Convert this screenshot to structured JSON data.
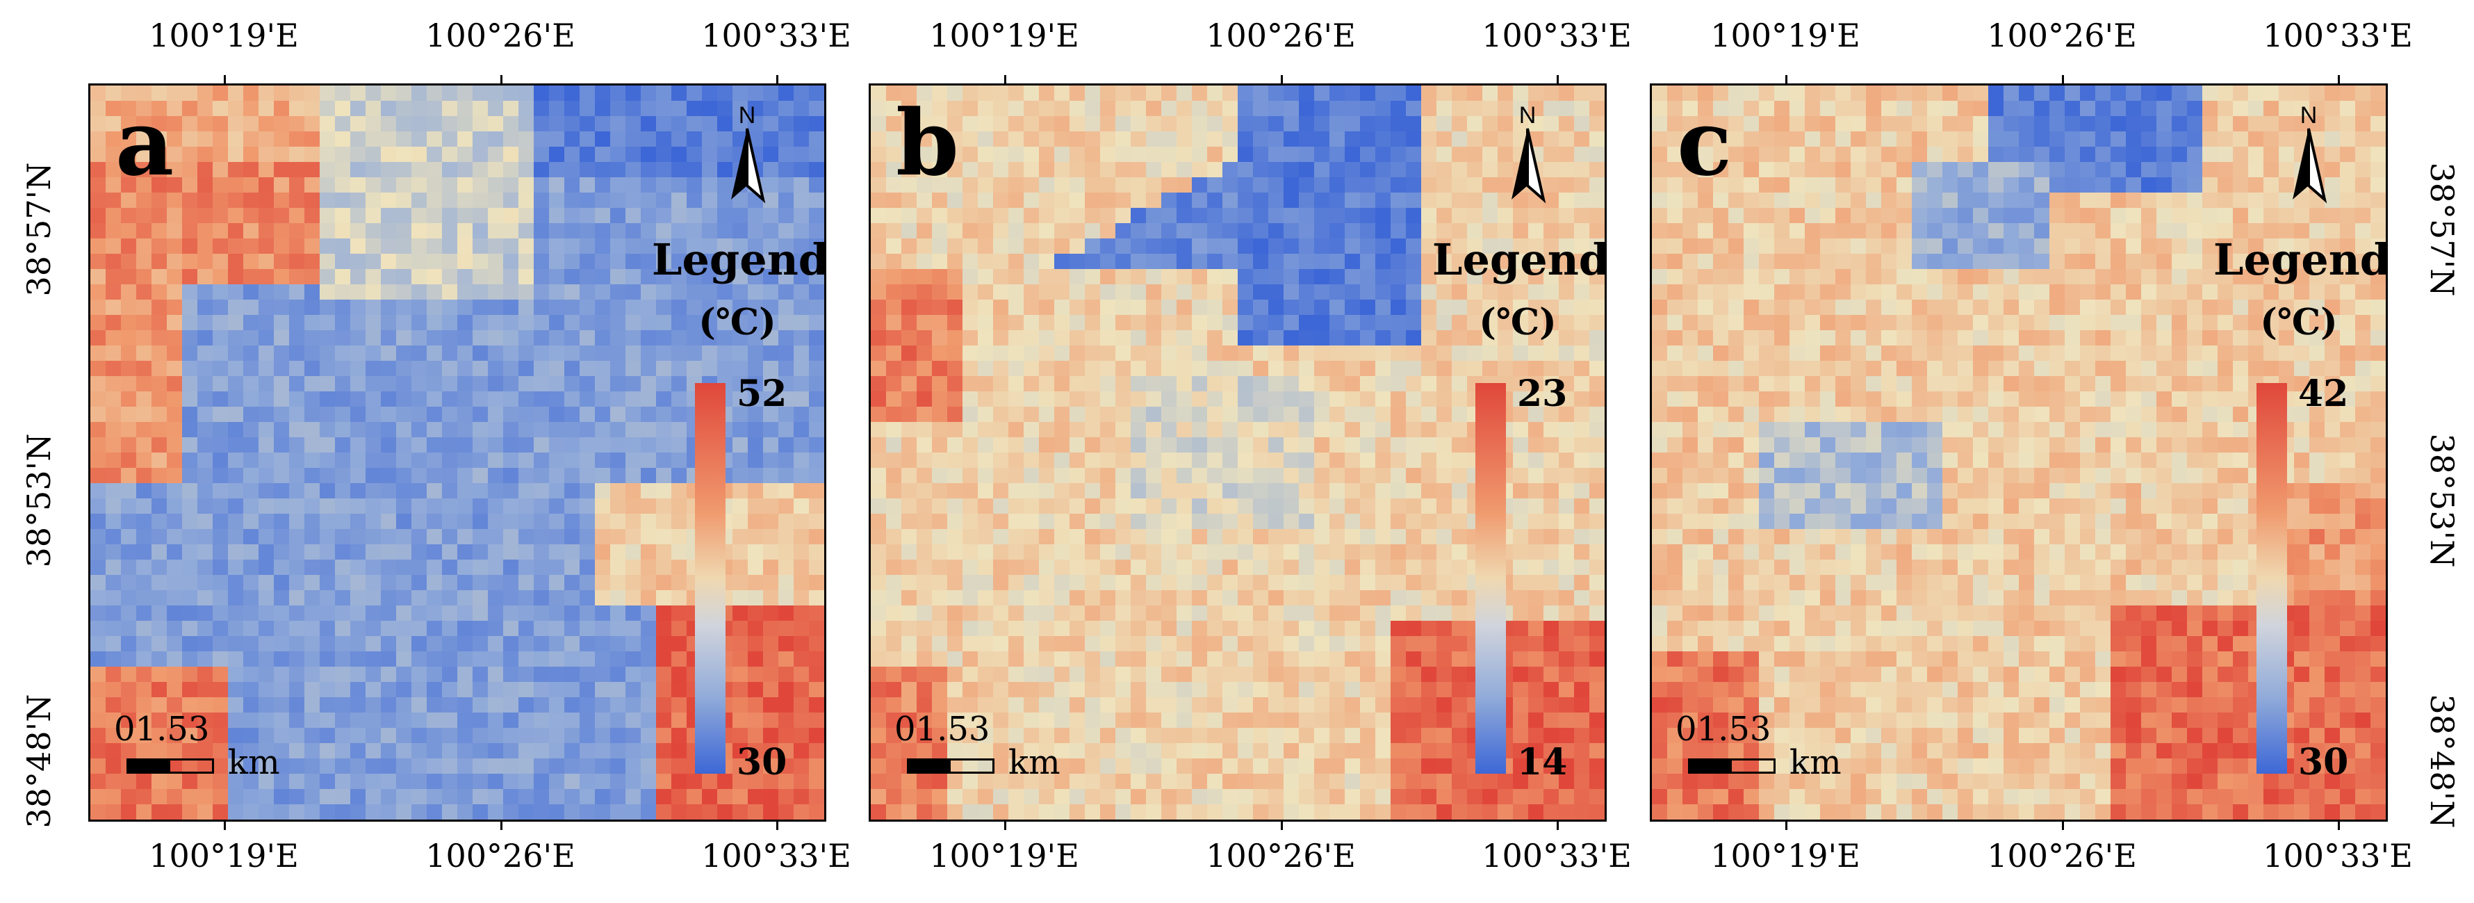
{
  "figure": {
    "panels": [
      {
        "id": "a",
        "letter": "a",
        "legend_title": "Legend",
        "legend_unit": "(℃)",
        "legend_max": "52",
        "legend_min": "30",
        "scale_numbers": "01.53",
        "scale_unit": "km",
        "north_label": "N",
        "top_lon_labels": [
          "100°19'E",
          "100°26'E",
          "100°33'E"
        ],
        "bottom_lon_labels": [
          "100°19'E",
          "100°26'E",
          "100°33'E"
        ],
        "left_lat_labels": [
          "38°57'N",
          "38°53'N",
          "38°48'N"
        ],
        "right_lat_labels": []
      },
      {
        "id": "b",
        "letter": "b",
        "legend_title": "Legend",
        "legend_unit": "(℃)",
        "legend_max": "23",
        "legend_min": "14",
        "scale_numbers": "01.53",
        "scale_unit": "km",
        "north_label": "N",
        "top_lon_labels": [
          "100°19'E",
          "100°26'E",
          "100°33'E"
        ],
        "bottom_lon_labels": [
          "100°19'E",
          "100°26'E",
          "100°33'E"
        ],
        "left_lat_labels": [],
        "right_lat_labels": []
      },
      {
        "id": "c",
        "letter": "c",
        "legend_title": "Legend",
        "legend_unit": "(℃)",
        "legend_max": "42",
        "legend_min": "30",
        "scale_numbers": "01.53",
        "scale_unit": "km",
        "north_label": "N",
        "top_lon_labels": [
          "100°19'E",
          "100°26'E",
          "100°33'E"
        ],
        "bottom_lon_labels": [
          "100°19'E",
          "100°26'E",
          "100°33'E"
        ],
        "left_lat_labels": [],
        "right_lat_labels": [
          "38°57'N",
          "38°53'N",
          "38°48'N"
        ]
      }
    ],
    "colors": {
      "hot": "#e0473a",
      "warm": "#f09a6e",
      "neutral": "#efe3bd",
      "cool": "#93acd9",
      "cold": "#3d67d6",
      "frame": "#000000"
    }
  }
}
